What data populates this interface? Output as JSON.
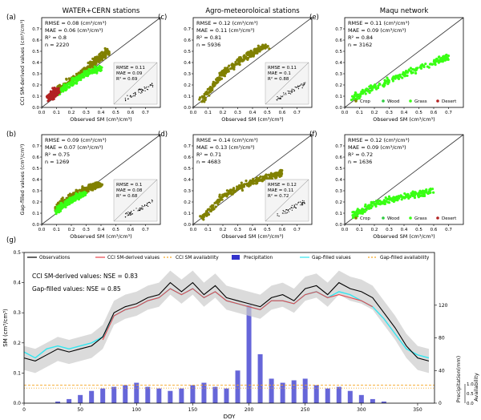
{
  "panels": [
    {
      "letter": "(a)",
      "title": "WATER+CERN stations",
      "ylabel": "CCI SM-derived values (cm³/cm³)",
      "stats": [
        "RMSE = 0.08 (cm³/cm³)",
        "MAE = 0.06 (cm³/cm³)",
        "R² = 0.8",
        "n = 2220"
      ],
      "inset": [
        "RMSE = 0.11",
        "MAE = 0.09",
        "R² = 0.69"
      ]
    },
    {
      "letter": "(c)",
      "title": "Agro-meteoroloical stations",
      "ylabel": "",
      "stats": [
        "RMSE = 0.12 (cm³/cm³)",
        "MAE = 0.11 (cm³/cm³)",
        "R² = 0.81",
        "n = 5936"
      ],
      "inset": [
        "RMSE = 0.11",
        "MAE = 0.1",
        "R² = 0.88"
      ]
    },
    {
      "letter": "(e)",
      "title": "Maqu network",
      "ylabel": "",
      "stats": [
        "RMSE = 0.11 (cm³/cm³)",
        "MAE = 0.09 (cm³/cm³)",
        "R² = 0.84",
        "n = 3162"
      ],
      "inset": []
    },
    {
      "letter": "(b)",
      "title": "",
      "ylabel": "Gap-filled values (cm³/cm³)",
      "stats": [
        "RMSE = 0.09 (cm³/cm³)",
        "MAE = 0.07 (cm³/cm³)",
        "R² = 0.75",
        "n = 1269"
      ],
      "inset": [
        "RMSE = 0.1",
        "MAE = 0.08",
        "R² = 0.68"
      ]
    },
    {
      "letter": "(d)",
      "title": "",
      "ylabel": "",
      "stats": [
        "RMSE = 0.14 (cm³/cm³)",
        "MAE = 0.13 (cm³/cm³)",
        "R² = 0.71",
        "n = 4683"
      ],
      "inset": [
        "RMSE = 0.12",
        "MAE = 0.11",
        "R² = 0.72"
      ]
    },
    {
      "letter": "(f)",
      "title": "",
      "ylabel": "",
      "stats": [
        "RMSE = 0.12 (cm³/cm³)",
        "MAE = 0.09 (cm³/cm³)",
        "R² = 0.72",
        "n = 1636"
      ],
      "inset": []
    }
  ],
  "scatter_xlabel": "Observed SM (cm³/cm³)",
  "land_cover_legend": [
    {
      "label": "Crop",
      "color": "#808000"
    },
    {
      "label": "Wood",
      "color": "#2ecc40"
    },
    {
      "label": "Grass",
      "color": "#39ff14"
    },
    {
      "label": "Desert",
      "color": "#b22222"
    }
  ],
  "timeseries": {
    "letter": "(g)",
    "ylabel": "SM (cm³/cm³)",
    "y2label": "Precipitation(mm)",
    "y3label": "Availability",
    "xlabel": "DOY",
    "nse_cci": "CCI SM-derived values: NSE = 0.83",
    "nse_gap": "Gap-filled values: NSE = 0.85",
    "legend": [
      {
        "label": "Observations",
        "color": "#000000",
        "style": "line"
      },
      {
        "label": "CCI SM-derived values",
        "color": "#e8474d",
        "style": "line"
      },
      {
        "label": "CCI SM availability",
        "color": "#f5a623",
        "style": "dash"
      },
      {
        "label": "Precipitation",
        "color": "#3333cc",
        "style": "bar"
      },
      {
        "label": "Gap-filled values",
        "color": "#33e6f0",
        "style": "line"
      },
      {
        "label": "Gap-filled availability",
        "color": "#f5a623",
        "style": "dash"
      }
    ]
  },
  "chart_data": [
    {
      "type": "scatter",
      "panel": "a",
      "xlim": [
        0,
        0.8
      ],
      "ylim": [
        0,
        0.8
      ],
      "xticks": [
        "0.0",
        "0.1",
        "0.2",
        "0.3",
        "0.4",
        "0.5",
        "0.6",
        "0.7"
      ],
      "yticks": [
        "0.0",
        "0.1",
        "0.2",
        "0.3",
        "0.4",
        "0.5",
        "0.6",
        "0.7"
      ],
      "series": [
        {
          "name": "Crop",
          "x": [
            0.1,
            0.2,
            0.3,
            0.35,
            0.4,
            0.45
          ],
          "y": [
            0.15,
            0.25,
            0.33,
            0.4,
            0.45,
            0.5
          ]
        },
        {
          "name": "Grass",
          "x": [
            0.1,
            0.2,
            0.3,
            0.4
          ],
          "y": [
            0.12,
            0.22,
            0.3,
            0.35
          ]
        },
        {
          "name": "Desert",
          "x": [
            0.05,
            0.08,
            0.1
          ],
          "y": [
            0.08,
            0.12,
            0.15
          ]
        }
      ]
    },
    {
      "type": "scatter",
      "panel": "c",
      "xlim": [
        0,
        0.8
      ],
      "ylim": [
        0,
        0.8
      ],
      "xticks": [
        "0.0",
        "0.1",
        "0.2",
        "0.3",
        "0.4",
        "0.5",
        "0.6",
        "0.7"
      ],
      "yticks": [
        "0.0",
        "0.1",
        "0.2",
        "0.3",
        "0.4",
        "0.5",
        "0.6",
        "0.7"
      ],
      "series": [
        {
          "name": "Crop",
          "x": [
            0.05,
            0.2,
            0.35,
            0.5
          ],
          "y": [
            0.05,
            0.3,
            0.45,
            0.55
          ]
        }
      ]
    },
    {
      "type": "scatter",
      "panel": "e",
      "xlim": [
        0,
        0.8
      ],
      "ylim": [
        0,
        0.8
      ],
      "xticks": [
        "0.0",
        "0.1",
        "0.2",
        "0.3",
        "0.4",
        "0.5",
        "0.6",
        "0.7"
      ],
      "yticks": [
        "0.0",
        "0.1",
        "0.2",
        "0.3",
        "0.4",
        "0.5",
        "0.6",
        "0.7"
      ],
      "series": [
        {
          "name": "Grass",
          "x": [
            0.05,
            0.2,
            0.4,
            0.6,
            0.7
          ],
          "y": [
            0.08,
            0.18,
            0.3,
            0.4,
            0.45
          ]
        }
      ]
    },
    {
      "type": "scatter",
      "panel": "b",
      "xlim": [
        0,
        0.8
      ],
      "ylim": [
        0,
        0.8
      ],
      "xticks": [
        "0.0",
        "0.1",
        "0.2",
        "0.3",
        "0.4",
        "0.5",
        "0.6",
        "0.7"
      ],
      "yticks": [
        "0.0",
        "0.1",
        "0.2",
        "0.3",
        "0.4",
        "0.5",
        "0.6",
        "0.7"
      ],
      "series": [
        {
          "name": "Crop",
          "x": [
            0.1,
            0.2,
            0.3,
            0.4
          ],
          "y": [
            0.15,
            0.25,
            0.32,
            0.36
          ]
        },
        {
          "name": "Grass",
          "x": [
            0.1,
            0.2,
            0.3
          ],
          "y": [
            0.12,
            0.22,
            0.28
          ]
        }
      ]
    },
    {
      "type": "scatter",
      "panel": "d",
      "xlim": [
        0,
        0.8
      ],
      "ylim": [
        0,
        0.8
      ],
      "xticks": [
        "0.0",
        "0.1",
        "0.2",
        "0.3",
        "0.4",
        "0.5",
        "0.6",
        "0.7"
      ],
      "yticks": [
        "0.0",
        "0.1",
        "0.2",
        "0.3",
        "0.4",
        "0.5",
        "0.6",
        "0.7"
      ],
      "series": [
        {
          "name": "Crop",
          "x": [
            0.05,
            0.2,
            0.35,
            0.5,
            0.6
          ],
          "y": [
            0.05,
            0.25,
            0.35,
            0.42,
            0.46
          ]
        }
      ]
    },
    {
      "type": "scatter",
      "panel": "f",
      "xlim": [
        0,
        0.8
      ],
      "ylim": [
        0,
        0.8
      ],
      "xticks": [
        "0.0",
        "0.1",
        "0.2",
        "0.3",
        "0.4",
        "0.5",
        "0.6",
        "0.7"
      ],
      "yticks": [
        "0.0",
        "0.1",
        "0.2",
        "0.3",
        "0.4",
        "0.5",
        "0.6",
        "0.7"
      ],
      "series": [
        {
          "name": "Grass",
          "x": [
            0.05,
            0.2,
            0.4,
            0.6
          ],
          "y": [
            0.08,
            0.18,
            0.25,
            0.3
          ]
        }
      ]
    },
    {
      "type": "line",
      "panel": "g",
      "xlim": [
        0,
        365
      ],
      "ylim": [
        0,
        0.5
      ],
      "xticks": [
        "0",
        "50",
        "100",
        "150",
        "200",
        "250",
        "300",
        "350"
      ],
      "yticks": [
        "0.0",
        "0.1",
        "0.2",
        "0.3",
        "0.4",
        "0.5"
      ],
      "y2ticks": [
        "0",
        "40",
        "80",
        "120"
      ],
      "y3ticks": [
        "0.0",
        "0.5",
        "1.0"
      ],
      "x": [
        0,
        10,
        20,
        30,
        40,
        50,
        60,
        70,
        80,
        90,
        100,
        110,
        120,
        130,
        140,
        150,
        160,
        170,
        180,
        190,
        200,
        210,
        220,
        230,
        240,
        250,
        260,
        270,
        280,
        290,
        300,
        310,
        320,
        330,
        340,
        350,
        360
      ],
      "series": [
        {
          "name": "Observations",
          "values": [
            0.15,
            0.14,
            0.16,
            0.18,
            0.17,
            0.18,
            0.19,
            0.22,
            0.3,
            0.32,
            0.33,
            0.35,
            0.36,
            0.4,
            0.37,
            0.4,
            0.36,
            0.39,
            0.35,
            0.34,
            0.33,
            0.32,
            0.35,
            0.36,
            0.34,
            0.38,
            0.39,
            0.36,
            0.4,
            0.38,
            0.37,
            0.35,
            0.3,
            0.25,
            0.19,
            0.15,
            0.14
          ]
        },
        {
          "name": "CCI SM-derived values",
          "values": [
            null,
            null,
            null,
            null,
            null,
            null,
            null,
            0.21,
            0.29,
            0.31,
            0.32,
            0.34,
            0.35,
            0.38,
            0.36,
            0.38,
            0.35,
            0.37,
            0.34,
            0.33,
            0.32,
            0.31,
            0.34,
            0.34,
            0.33,
            0.36,
            0.37,
            0.35,
            0.36,
            0.35,
            0.34,
            0.32,
            null,
            null,
            null,
            null,
            null
          ]
        },
        {
          "name": "Gap-filled values",
          "values": [
            0.17,
            0.15,
            0.18,
            0.19,
            0.18,
            0.19,
            0.2,
            0.22,
            0.29,
            0.31,
            0.32,
            0.34,
            0.35,
            0.38,
            0.36,
            0.38,
            0.35,
            0.37,
            0.34,
            0.33,
            0.32,
            0.31,
            0.34,
            0.34,
            0.33,
            0.36,
            0.37,
            0.35,
            0.37,
            0.36,
            0.34,
            0.32,
            0.28,
            0.23,
            0.18,
            0.16,
            0.15
          ]
        },
        {
          "name": "Precipitation",
          "values": [
            0,
            0,
            0,
            2,
            5,
            10,
            15,
            18,
            20,
            22,
            25,
            20,
            18,
            15,
            18,
            22,
            25,
            20,
            18,
            40,
            120,
            60,
            30,
            25,
            28,
            30,
            22,
            18,
            20,
            15,
            10,
            5,
            2,
            0,
            0,
            0,
            0
          ]
        }
      ]
    }
  ]
}
